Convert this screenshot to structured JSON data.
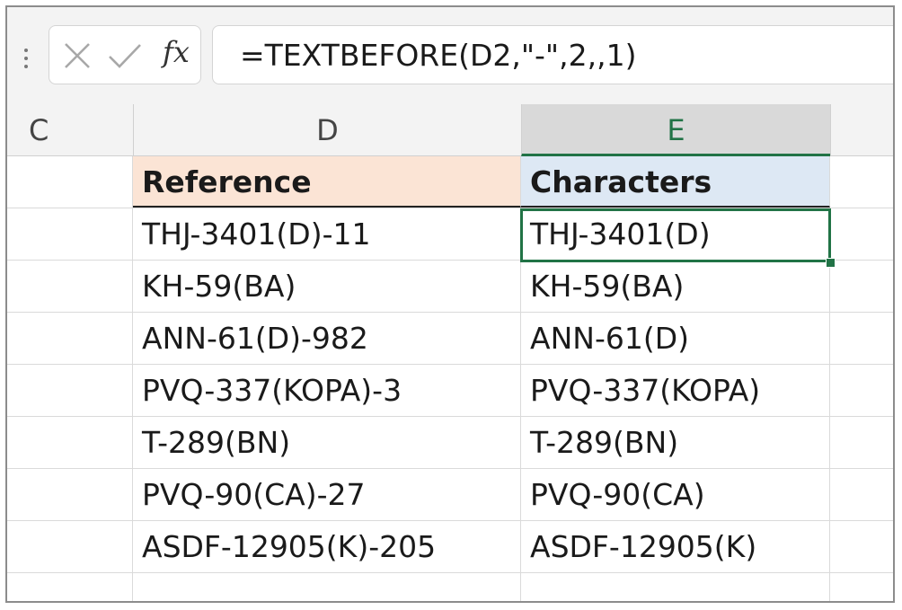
{
  "formula_bar": {
    "formula": "=TEXTBEFORE(D2,\"-\",2,,1)"
  },
  "columns": {
    "c": "C",
    "d": "D",
    "e": "E"
  },
  "header_row": {
    "reference": "Reference",
    "characters": "Characters"
  },
  "rows": [
    {
      "reference": "THJ-3401(D)-11",
      "characters": "THJ-3401(D)"
    },
    {
      "reference": "KH-59(BA)",
      "characters": "KH-59(BA)"
    },
    {
      "reference": "ANN-61(D)-982",
      "characters": "ANN-61(D)"
    },
    {
      "reference": "PVQ-337(KOPA)-3",
      "characters": "PVQ-337(KOPA)"
    },
    {
      "reference": "T-289(BN)",
      "characters": "T-289(BN)"
    },
    {
      "reference": "PVQ-90(CA)-27",
      "characters": "PVQ-90(CA)"
    },
    {
      "reference": "ASDF-12905(K)-205",
      "characters": "ASDF-12905(K)"
    }
  ],
  "icons": {
    "cancel": "close-icon",
    "enter": "check-icon",
    "function": "fx-icon",
    "grip": "grip-dots-icon"
  },
  "colors": {
    "accent": "#217346",
    "header_reference_fill": "#fbe4d5",
    "header_characters_fill": "#dde8f4"
  }
}
